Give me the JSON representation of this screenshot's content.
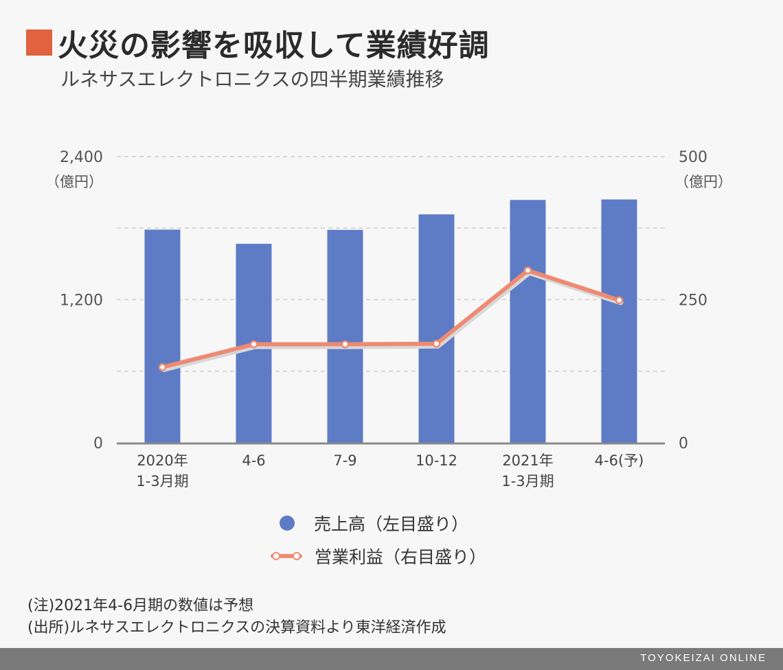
{
  "title": "火災の影響を吸収して業績好調",
  "subtitle": "ルネサスエレクトロニクスの四半期業績推移",
  "chart_data": {
    "type": "bar",
    "categories": [
      [
        "2020年",
        "1-3月期"
      ],
      [
        "4-6"
      ],
      [
        "7-9"
      ],
      [
        "10-12"
      ],
      [
        "2021年",
        "1-3月期"
      ],
      [
        "4-6(予)"
      ]
    ],
    "series": [
      {
        "name": "売上高（左目盛り）",
        "type": "bar",
        "axis": "left",
        "values": [
          1787,
          1668,
          1785,
          1915,
          2036,
          2040
        ]
      },
      {
        "name": "営業利益（右目盛り）",
        "type": "line",
        "axis": "right",
        "values": [
          132,
          172,
          172,
          173,
          301,
          249
        ]
      }
    ],
    "y_left": {
      "min": 0,
      "max": 2400,
      "ticks": [
        "0",
        "1,200",
        "2,400"
      ],
      "unit": "（億円）"
    },
    "y_right": {
      "min": 0,
      "max": 500,
      "ticks": [
        "0",
        "250",
        "500"
      ],
      "unit": "（億円）"
    },
    "grid": true,
    "legend_position": "bottom",
    "colors": {
      "bar": "#5e7bc6",
      "line": "#ef8a72"
    }
  },
  "notes": [
    "(注)2021年4-6月期の数値は予想",
    "(出所)ルネサスエレクトロニクスの決算資料より東洋経済作成"
  ],
  "footer": "TOYOKEIZAI ONLINE",
  "colors": {
    "accent": "#e0623e"
  }
}
